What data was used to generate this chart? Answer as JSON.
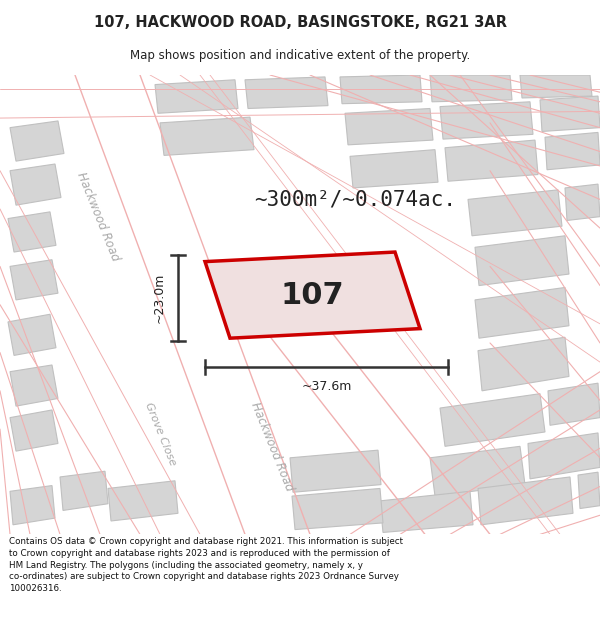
{
  "title_line1": "107, HACKWOOD ROAD, BASINGSTOKE, RG21 3AR",
  "title_line2": "Map shows position and indicative extent of the property.",
  "area_text": "~300m²/~0.074ac.",
  "property_label": "107",
  "dim_vertical": "~23.0m",
  "dim_horizontal": "~37.6m",
  "road_label_1": "Hackwood Road",
  "road_label_2": "Hackwood Road",
  "road_label_3": "Grove Close",
  "footer_text": "Contains OS data © Crown copyright and database right 2021. This information is subject\nto Crown copyright and database rights 2023 and is reproduced with the permission of\nHM Land Registry. The polygons (including the associated geometry, namely x, y\nco-ordinates) are subject to Crown copyright and database rights 2023 Ordnance Survey\n100026316.",
  "map_bg": "#efefef",
  "road_color": "#ffffff",
  "road_stripe_color": "#f0b0b0",
  "building_color": "#d5d5d5",
  "building_edge": "#c0c0c0",
  "highlight_color": "#cc0000",
  "highlight_fill": "#f0e0e0",
  "dim_line_color": "#333333",
  "text_color": "#222222",
  "road_text_color": "#aaaaaa",
  "footer_color": "#111111"
}
